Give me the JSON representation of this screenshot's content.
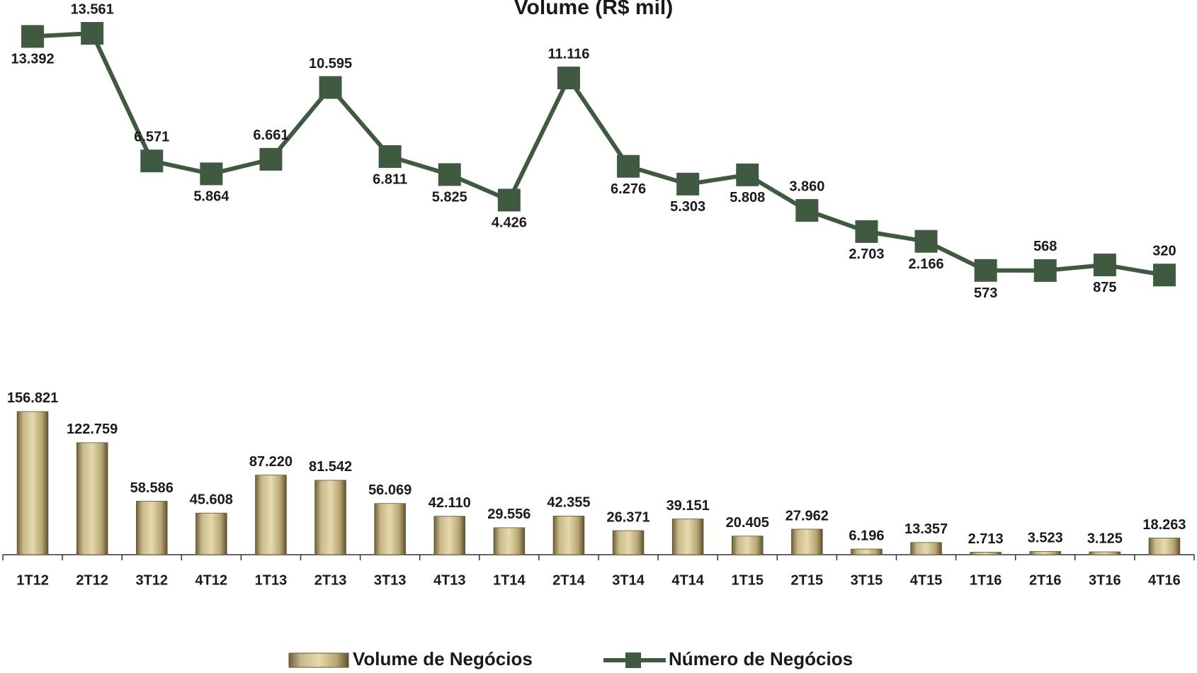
{
  "chart_data": {
    "type": "bar_line",
    "title": "Volume (R$ mil)",
    "categories": [
      "1T12",
      "2T12",
      "3T12",
      "4T12",
      "1T13",
      "2T13",
      "3T13",
      "4T13",
      "1T14",
      "2T14",
      "3T14",
      "4T14",
      "1T15",
      "2T15",
      "3T15",
      "4T15",
      "1T16",
      "2T16",
      "3T16",
      "4T16"
    ],
    "ylim": [
      0,
      600000
    ],
    "y2lim": [
      -15000,
      15000
    ],
    "legend": "bottom",
    "series": [
      {
        "name": "Volume de Negócios",
        "type": "bar",
        "color": "#b5a373",
        "values": [
          156821,
          122759,
          58586,
          45608,
          87220,
          81542,
          56069,
          42110,
          29556,
          42355,
          26371,
          39151,
          20405,
          27962,
          6196,
          13357,
          2713,
          3523,
          3125,
          18263
        ],
        "value_labels": [
          "156.821",
          "122.759",
          "58.586",
          "45.608",
          "87.220",
          "81.542",
          "56.069",
          "42.110",
          "29.556",
          "42.355",
          "26.371",
          "39.151",
          "20.405",
          "27.962",
          "6.196",
          "13.357",
          "2.713",
          "3.523",
          "3.125",
          "18.263"
        ]
      },
      {
        "name": "Número de Negócios",
        "type": "line",
        "axis": "y2",
        "color": "#3f5a40",
        "values": [
          13392,
          13561,
          6571,
          5864,
          6661,
          10595,
          6811,
          5825,
          4426,
          11116,
          6276,
          5303,
          5808,
          3860,
          2703,
          2166,
          573,
          568,
          875,
          320
        ],
        "value_labels": [
          "13.392",
          "13.561",
          "6.571",
          "5.864",
          "6.661",
          "10.595",
          "6.811",
          "5.825",
          "4.426",
          "11.116",
          "6.276",
          "5.303",
          "5.808",
          "3.860",
          "2.703",
          "2.166",
          "573",
          "568",
          "875",
          "320"
        ]
      }
    ]
  }
}
